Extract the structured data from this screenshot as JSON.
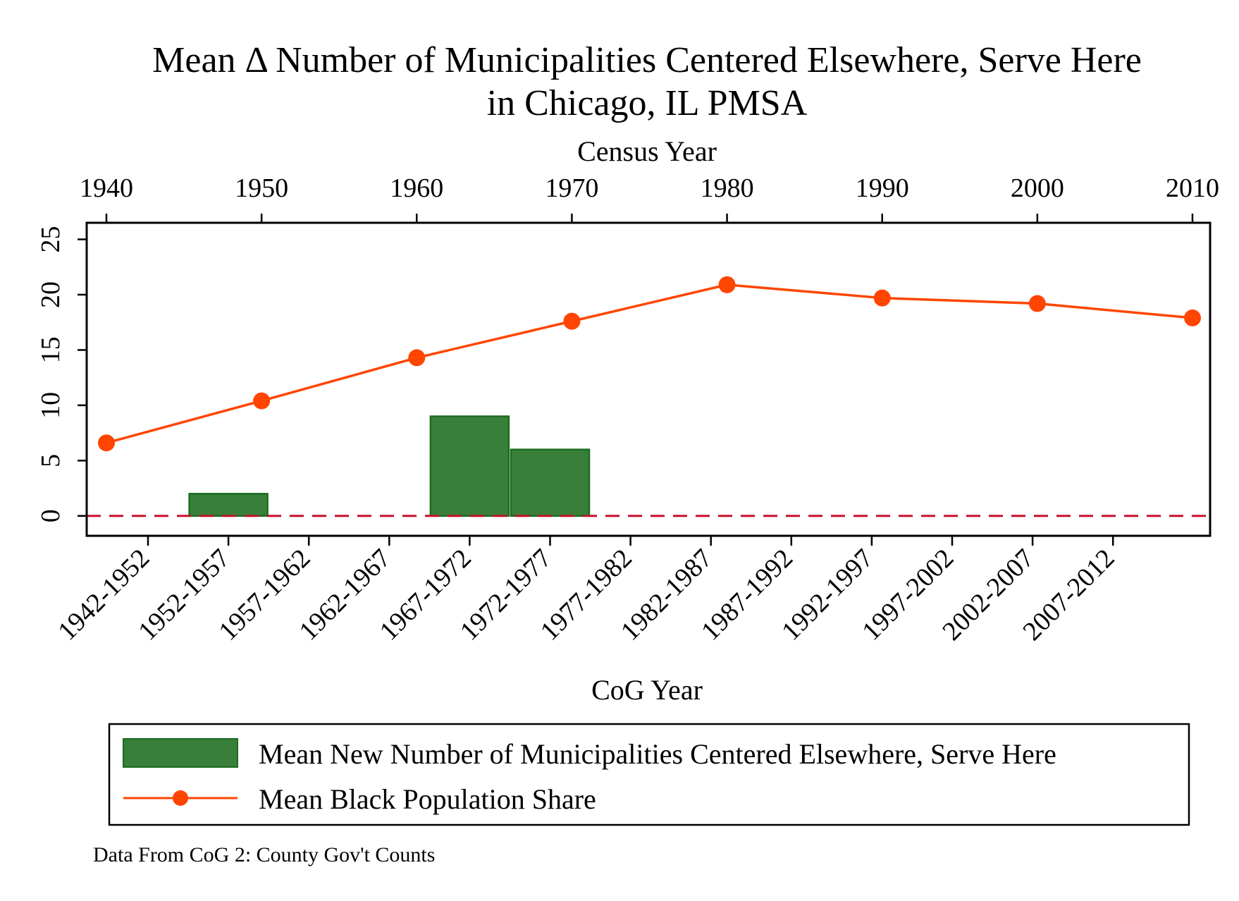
{
  "chart_data": {
    "type": "bar",
    "title_lines": [
      "Mean Δ Number of Municipalities Centered Elsewhere, Serve Here",
      "in Chicago, IL PMSA"
    ],
    "top_axis": {
      "label": "Census Year",
      "ticks": [
        "1940",
        "1950",
        "1960",
        "1970",
        "1980",
        "1990",
        "2000",
        "2010"
      ],
      "range": [
        1940,
        2010
      ]
    },
    "bottom_axis": {
      "label": "CoG Year",
      "ticks": [
        "1942-1952",
        "1952-1957",
        "1957-1962",
        "1962-1967",
        "1967-1972",
        "1972-1977",
        "1977-1982",
        "1982-1987",
        "1987-1992",
        "1992-1997",
        "1997-2002",
        "2002-2007",
        "2007-2012"
      ]
    },
    "y_axis": {
      "ticks": [
        "0",
        "5",
        "10",
        "15",
        "20",
        "25"
      ],
      "range": [
        -1.8,
        26.5
      ]
    },
    "series": [
      {
        "name": "Mean New Number of Municipalities Centered Elsewhere, Serve Here",
        "kind": "bar",
        "color": "#38803a",
        "categories": [
          "1952-1957",
          "1967-1972",
          "1972-1977"
        ],
        "values": [
          2,
          9,
          6
        ]
      },
      {
        "name": "Mean Black Population Share",
        "kind": "line",
        "color": "#ff4500",
        "x": [
          1940,
          1950,
          1960,
          1970,
          1980,
          1990,
          2000,
          2010
        ],
        "values": [
          6.6,
          10.4,
          14.3,
          17.6,
          20.9,
          19.7,
          19.2,
          17.9
        ]
      }
    ],
    "reference_line": {
      "y": 0,
      "color": "#c8102e",
      "style": "dashed"
    },
    "legend": {
      "position": "bottom",
      "entries": [
        "Mean New Number of Municipalities Centered Elsewhere, Serve Here",
        "Mean Black Population Share"
      ]
    },
    "note": "Data From CoG 2: County Gov't Counts",
    "grid": false
  }
}
